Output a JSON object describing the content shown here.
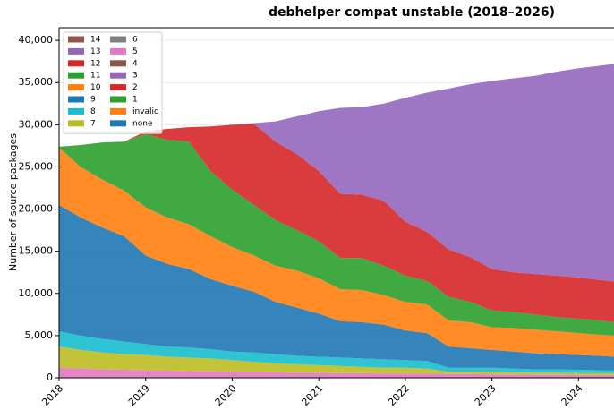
{
  "chart_data": {
    "type": "stacked_area",
    "title": "debhelper compat unstable (2018–2026)",
    "y_label": "Number of source packages",
    "x": [
      2018.0,
      2018.25,
      2018.5,
      2018.75,
      2019.0,
      2019.25,
      2019.5,
      2019.75,
      2020.0,
      2020.25,
      2020.5,
      2020.75,
      2021.0,
      2021.25,
      2021.5,
      2021.75,
      2022.0,
      2022.25,
      2022.5,
      2022.75,
      2023.0,
      2023.25,
      2023.5,
      2023.75,
      2024.0,
      2024.25,
      2024.41
    ],
    "xlim": [
      2018,
      2024.41
    ],
    "xticks": [
      2018,
      2019,
      2020,
      2021,
      2022,
      2023,
      2024
    ],
    "ylim": [
      0,
      41500
    ],
    "yticks": [
      0,
      {
        "value": 5000,
        "label": "5,000"
      },
      {
        "value": 10000,
        "label": "10,000"
      },
      {
        "value": 15000,
        "label": "15,000"
      },
      {
        "value": 20000,
        "label": "20,000"
      },
      {
        "value": 25000,
        "label": "25,000"
      },
      {
        "value": 30000,
        "label": "30,000"
      },
      {
        "value": 35000,
        "label": "35,000"
      },
      {
        "value": 40000,
        "label": "40,000"
      }
    ],
    "grid": true,
    "legend": "upper left",
    "series": [
      {
        "name": "none",
        "color": "#1f77b4",
        "values": [
          0,
          0,
          0,
          0,
          0,
          0,
          0,
          0,
          0,
          0,
          0,
          0,
          0,
          0,
          0,
          0,
          0,
          0,
          0,
          0,
          0,
          0,
          0,
          0,
          0,
          0,
          0
        ]
      },
      {
        "name": "invalid",
        "color": "#ff7f0e",
        "values": [
          0,
          0,
          0,
          0,
          0,
          0,
          0,
          0,
          0,
          0,
          0,
          0,
          0,
          0,
          0,
          0,
          0,
          0,
          0,
          0,
          0,
          0,
          0,
          0,
          0,
          0,
          0
        ]
      },
      {
        "name": "1",
        "color": "#2ca02c",
        "values": [
          0,
          0,
          0,
          0,
          0,
          0,
          0,
          0,
          0,
          0,
          0,
          0,
          0,
          0,
          0,
          0,
          0,
          0,
          0,
          0,
          0,
          0,
          0,
          0,
          0,
          0,
          0
        ]
      },
      {
        "name": "2",
        "color": "#d62728",
        "values": [
          0,
          0,
          0,
          0,
          0,
          0,
          0,
          0,
          0,
          0,
          0,
          0,
          0,
          0,
          0,
          0,
          0,
          0,
          0,
          0,
          0,
          0,
          0,
          0,
          0,
          0,
          0
        ]
      },
      {
        "name": "3",
        "color": "#9467bd",
        "values": [
          0,
          0,
          0,
          0,
          0,
          0,
          0,
          0,
          0,
          0,
          0,
          0,
          0,
          0,
          0,
          0,
          0,
          0,
          0,
          0,
          0,
          0,
          0,
          0,
          0,
          0,
          0
        ]
      },
      {
        "name": "4",
        "color": "#8c564b",
        "values": [
          0,
          0,
          0,
          0,
          0,
          0,
          0,
          0,
          0,
          0,
          0,
          0,
          0,
          0,
          0,
          0,
          0,
          0,
          0,
          0,
          0,
          0,
          0,
          0,
          0,
          0,
          0
        ]
      },
      {
        "name": "5",
        "color": "#e377c2",
        "values": [
          1200,
          1100,
          1000,
          950,
          900,
          850,
          800,
          750,
          700,
          700,
          650,
          600,
          600,
          550,
          550,
          500,
          500,
          500,
          450,
          450,
          400,
          400,
          350,
          350,
          300,
          300,
          300
        ]
      },
      {
        "name": "6",
        "color": "#7f7f7f",
        "values": [
          0,
          0,
          0,
          0,
          0,
          0,
          0,
          0,
          0,
          0,
          0,
          0,
          0,
          0,
          0,
          0,
          0,
          0,
          0,
          0,
          0,
          0,
          0,
          0,
          0,
          0,
          0
        ]
      },
      {
        "name": "7",
        "color": "#bcbd22",
        "values": [
          2500,
          2200,
          2000,
          1850,
          1800,
          1650,
          1600,
          1550,
          1400,
          1200,
          1050,
          1000,
          900,
          850,
          750,
          700,
          700,
          600,
          250,
          250,
          300,
          250,
          250,
          250,
          250,
          250,
          250
        ]
      },
      {
        "name": "8",
        "color": "#17becf",
        "values": [
          1800,
          1700,
          1600,
          1500,
          1300,
          1200,
          1200,
          1100,
          1000,
          1100,
          1100,
          1000,
          1000,
          1000,
          1000,
          1000,
          900,
          900,
          500,
          500,
          500,
          450,
          400,
          400,
          400,
          350,
          350
        ]
      },
      {
        "name": "9",
        "color": "#1f77b4",
        "values": [
          15000,
          14000,
          13200,
          12500,
          10500,
          9800,
          9300,
          8300,
          7800,
          7200,
          6200,
          5700,
          5100,
          4300,
          4300,
          4100,
          3500,
          3300,
          2500,
          2300,
          2100,
          2000,
          1900,
          1800,
          1750,
          1700,
          1600
        ]
      },
      {
        "name": "10",
        "color": "#ff7f0e",
        "values": [
          6800,
          6000,
          5700,
          5400,
          5700,
          5500,
          5300,
          5100,
          4600,
          4300,
          4300,
          4400,
          4200,
          3800,
          3800,
          3500,
          3400,
          3400,
          3100,
          3100,
          2700,
          2800,
          2800,
          2700,
          2600,
          2500,
          2500
        ]
      },
      {
        "name": "11",
        "color": "#2ca02c",
        "values": [
          100,
          2600,
          4400,
          5800,
          8700,
          9200,
          9800,
          7700,
          6800,
          6000,
          5400,
          4800,
          4400,
          3700,
          3800,
          3500,
          3100,
          2800,
          2800,
          2400,
          2000,
          1900,
          1800,
          1700,
          1700,
          1700,
          1600
        ]
      },
      {
        "name": "12",
        "color": "#d62728",
        "values": [
          0,
          0,
          0,
          0,
          300,
          1300,
          1700,
          5300,
          7700,
          9600,
          9300,
          9000,
          8300,
          7600,
          7500,
          7700,
          6400,
          5800,
          5600,
          5300,
          4900,
          4700,
          4800,
          4900,
          4900,
          4800,
          4800
        ]
      },
      {
        "name": "13",
        "color": "#9467bd",
        "values": [
          0,
          0,
          0,
          0,
          0,
          0,
          0,
          0,
          0,
          100,
          2400,
          4500,
          7100,
          10200,
          10400,
          11500,
          14700,
          16500,
          19100,
          20500,
          22300,
          23000,
          23500,
          24200,
          24800,
          25400,
          25800
        ]
      },
      {
        "name": "14",
        "color": "#8c564b",
        "values": [
          0,
          0,
          0,
          0,
          0,
          0,
          0,
          0,
          0,
          0,
          0,
          0,
          0,
          0,
          0,
          0,
          0,
          0,
          0,
          0,
          0,
          0,
          0,
          0,
          0,
          0,
          0
        ]
      }
    ]
  }
}
